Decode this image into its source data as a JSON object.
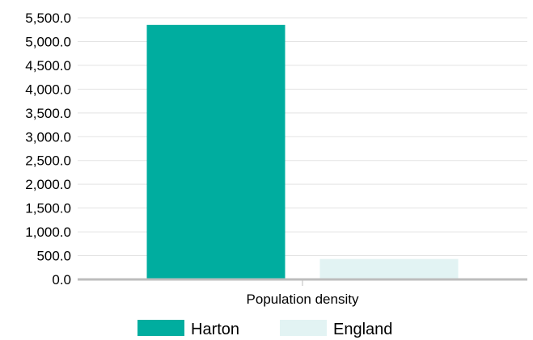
{
  "chart_data": {
    "type": "bar",
    "categories": [
      "Population density"
    ],
    "series": [
      {
        "name": "Harton",
        "values": [
          5350
        ],
        "color": "#00ad9f"
      },
      {
        "name": "England",
        "values": [
          430
        ],
        "color": "#e2f3f3"
      }
    ],
    "y_ticks": [
      "0.0",
      "500.0",
      "1,000.0",
      "1,500.0",
      "2,000.0",
      "2,500.0",
      "3,000.0",
      "3,500.0",
      "4,000.0",
      "4,500.0",
      "5,000.0",
      "5,500.0"
    ],
    "ylim": [
      0,
      5500
    ],
    "title": "",
    "xlabel": "",
    "ylabel": "",
    "grid": true,
    "legend_position": "bottom-center"
  }
}
